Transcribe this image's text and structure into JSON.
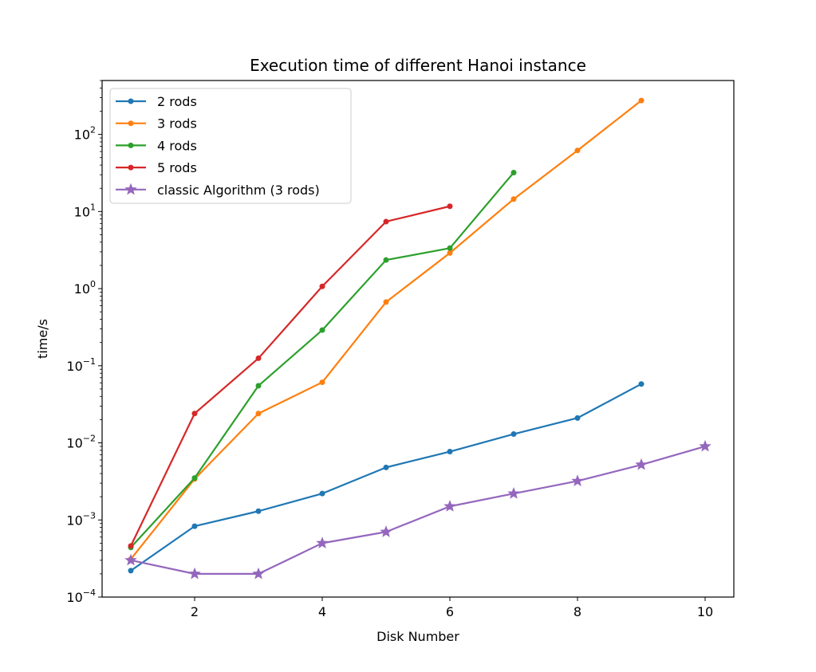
{
  "chart_data": {
    "type": "line",
    "title": "Execution time of different Hanoi instance",
    "xlabel": "Disk Number",
    "ylabel": "time/s",
    "xlim": [
      0.55,
      10.45
    ],
    "ylim": [
      0.0001,
      500
    ],
    "yscale": "log",
    "grid": false,
    "legend_position": "top-left",
    "x_ticks": [
      2,
      4,
      6,
      8,
      10
    ],
    "x_tick_labels": [
      "2",
      "4",
      "6",
      "8",
      "10"
    ],
    "y_ticks": [
      0.0001,
      0.001,
      0.01,
      0.1,
      1,
      10,
      100
    ],
    "y_tick_labels": [
      {
        "base": "10",
        "exp": "−4"
      },
      {
        "base": "10",
        "exp": "−3"
      },
      {
        "base": "10",
        "exp": "−2"
      },
      {
        "base": "10",
        "exp": "−1"
      },
      {
        "base": "10",
        "exp": "0"
      },
      {
        "base": "10",
        "exp": "1"
      },
      {
        "base": "10",
        "exp": "2"
      }
    ],
    "series": [
      {
        "name": "2 rods",
        "color": "#1f77b4",
        "marker": "dot",
        "x": [
          1,
          2,
          3,
          4,
          5,
          6,
          7,
          8,
          9
        ],
        "y": [
          0.00022,
          0.00083,
          0.0013,
          0.0022,
          0.0048,
          0.0077,
          0.013,
          0.021,
          0.058
        ]
      },
      {
        "name": "3 rods",
        "color": "#ff7f0e",
        "marker": "dot",
        "x": [
          1,
          2,
          3,
          4,
          5,
          6,
          7,
          8,
          9
        ],
        "y": [
          0.00031,
          0.0034,
          0.024,
          0.061,
          0.67,
          2.9,
          14.5,
          62,
          275
        ]
      },
      {
        "name": "4 rods",
        "color": "#2ca02c",
        "marker": "dot",
        "x": [
          1,
          2,
          3,
          4,
          5,
          6,
          7
        ],
        "y": [
          0.00044,
          0.0035,
          0.055,
          0.29,
          2.35,
          3.35,
          32
        ]
      },
      {
        "name": "5 rods",
        "color": "#d62728",
        "marker": "dot",
        "x": [
          1,
          2,
          3,
          4,
          5,
          6
        ],
        "y": [
          0.00046,
          0.024,
          0.125,
          1.07,
          7.4,
          11.7
        ]
      },
      {
        "name": "classic Algorithm (3 rods)",
        "color": "#9467bd",
        "marker": "star",
        "x": [
          1,
          2,
          3,
          4,
          5,
          6,
          7,
          8,
          9,
          10
        ],
        "y": [
          0.0003,
          0.0002,
          0.0002,
          0.0005,
          0.0007,
          0.0015,
          0.0022,
          0.0032,
          0.0052,
          0.009
        ]
      }
    ]
  }
}
